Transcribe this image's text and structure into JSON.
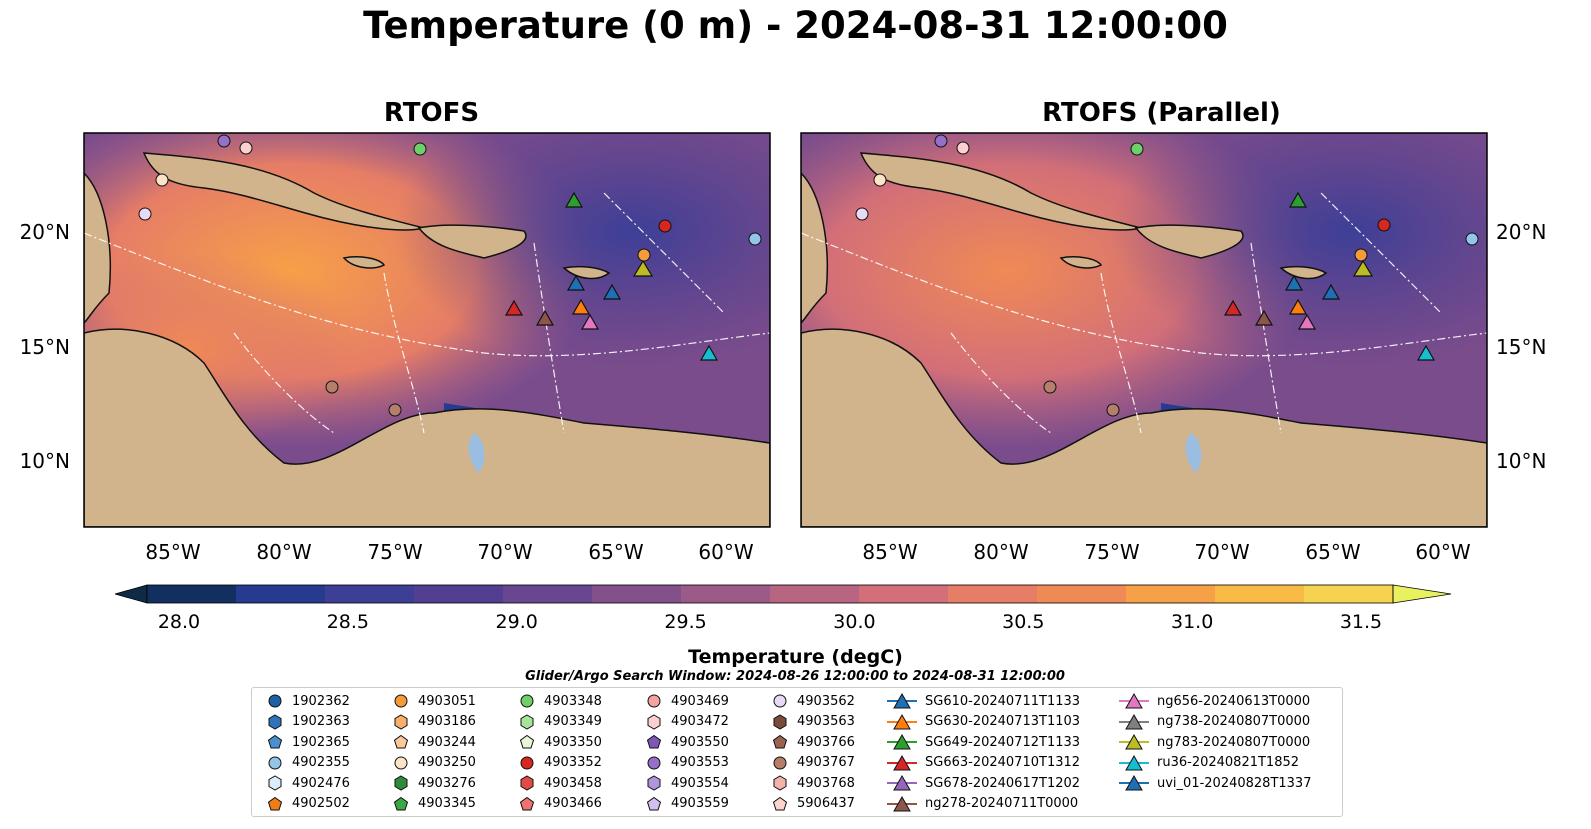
{
  "title": "Temperature (0 m) - 2024-08-31 12:00:00",
  "panels": [
    {
      "title": "RTOFS"
    },
    {
      "title": "RTOFS (Parallel)"
    }
  ],
  "latitude_ticks": [
    "20°N",
    "15°N",
    "10°N"
  ],
  "longitude_ticks": [
    "85°W",
    "80°W",
    "75°W",
    "70°W",
    "65°W",
    "60°W"
  ],
  "colorbar": {
    "label": "Temperature (degC)",
    "ticks": [
      "28.0",
      "28.5",
      "29.0",
      "29.5",
      "30.0",
      "30.5",
      "31.0",
      "31.5"
    ],
    "range": [
      28.0,
      31.5
    ],
    "colors": [
      "#0f2a44",
      "#12305f",
      "#263a8f",
      "#3d3f97",
      "#523f8f",
      "#694790",
      "#83508b",
      "#9c5a88",
      "#b86582",
      "#d26f78",
      "#e67d66",
      "#f08a55",
      "#f6a048",
      "#f8bb45",
      "#f5d24f",
      "#eaf161"
    ]
  },
  "legend": {
    "title": "Glider/Argo Search Window: 2024-08-26 12:00:00 to 2024-08-31 12:00:00",
    "columns": [
      [
        {
          "label": "1902362",
          "marker": "circle",
          "color": "#1f5fa6"
        },
        {
          "label": "1902363",
          "marker": "hexagon",
          "color": "#2f74b8"
        },
        {
          "label": "1902365",
          "marker": "pentagon",
          "color": "#4a8fd0"
        },
        {
          "label": "4902355",
          "marker": "circle",
          "color": "#93c5e8"
        },
        {
          "label": "4902476",
          "marker": "hexagon",
          "color": "#dcecfa"
        },
        {
          "label": "4902502",
          "marker": "pentagon",
          "color": "#f07c16"
        }
      ],
      [
        {
          "label": "4903051",
          "marker": "circle",
          "color": "#f59b3c"
        },
        {
          "label": "4903186",
          "marker": "hexagon",
          "color": "#f8b06a"
        },
        {
          "label": "4903244",
          "marker": "pentagon",
          "color": "#fbc99a"
        },
        {
          "label": "4903250",
          "marker": "circle",
          "color": "#fde3c8"
        },
        {
          "label": "4903276",
          "marker": "hexagon",
          "color": "#2e8b3a"
        },
        {
          "label": "4903345",
          "marker": "pentagon",
          "color": "#3aa845"
        }
      ],
      [
        {
          "label": "4903348",
          "marker": "circle",
          "color": "#6fd06a"
        },
        {
          "label": "4903349",
          "marker": "hexagon",
          "color": "#a7e39b"
        },
        {
          "label": "4903350",
          "marker": "pentagon",
          "color": "#e6f8d8"
        },
        {
          "label": "4903352",
          "marker": "circle",
          "color": "#d6281f"
        },
        {
          "label": "4903458",
          "marker": "hexagon",
          "color": "#e24a45"
        },
        {
          "label": "4903466",
          "marker": "pentagon",
          "color": "#ee7270"
        }
      ],
      [
        {
          "label": "4903469",
          "marker": "circle",
          "color": "#f6a3a0"
        },
        {
          "label": "4903472",
          "marker": "hexagon",
          "color": "#fcd0ce"
        },
        {
          "label": "4903550",
          "marker": "pentagon",
          "color": "#7e57b8"
        },
        {
          "label": "4903553",
          "marker": "circle",
          "color": "#9470c8"
        },
        {
          "label": "4903554",
          "marker": "hexagon",
          "color": "#b095dc"
        },
        {
          "label": "4903559",
          "marker": "pentagon",
          "color": "#d2bff0"
        }
      ],
      [
        {
          "label": "4903562",
          "marker": "circle",
          "color": "#e8d9f7"
        },
        {
          "label": "4903563",
          "marker": "hexagon",
          "color": "#7a4a3a"
        },
        {
          "label": "4903766",
          "marker": "pentagon",
          "color": "#9a6350"
        },
        {
          "label": "4903767",
          "marker": "circle",
          "color": "#b57f6c"
        },
        {
          "label": "4903768",
          "marker": "hexagon",
          "color": "#f0b4a8"
        },
        {
          "label": "5906437",
          "marker": "pentagon",
          "color": "#fbd5cc"
        }
      ],
      [
        {
          "label": "SG610-20240711T1133",
          "marker": "triangle-line",
          "color": "#1f6fb4"
        },
        {
          "label": "SG630-20240713T1103",
          "marker": "triangle-line",
          "color": "#ff7f0e"
        },
        {
          "label": "SG649-20240712T1133",
          "marker": "triangle-line",
          "color": "#2ca02c"
        },
        {
          "label": "SG663-20240710T1312",
          "marker": "triangle-line",
          "color": "#d62728"
        },
        {
          "label": "SG678-20240617T1202",
          "marker": "triangle-line",
          "color": "#9467bd"
        },
        {
          "label": "ng278-20240711T0000",
          "marker": "triangle-line",
          "color": "#8c564b"
        }
      ],
      [
        {
          "label": "ng656-20240613T0000",
          "marker": "triangle-line",
          "color": "#e377c2"
        },
        {
          "label": "ng738-20240807T0000",
          "marker": "triangle-line",
          "color": "#7f7f7f"
        },
        {
          "label": "ng783-20240807T0000",
          "marker": "triangle-line",
          "color": "#bcbd22"
        },
        {
          "label": "ru36-20240821T1852",
          "marker": "triangle-line",
          "color": "#17becf"
        },
        {
          "label": "uvi_01-20240828T1337",
          "marker": "triangle-line",
          "color": "#1f6fb4"
        }
      ]
    ]
  },
  "colors": {
    "land": "#d2b48c",
    "ocean_base": "#7a4c8c",
    "coast": "#111111",
    "eez": "#ffffff"
  }
}
